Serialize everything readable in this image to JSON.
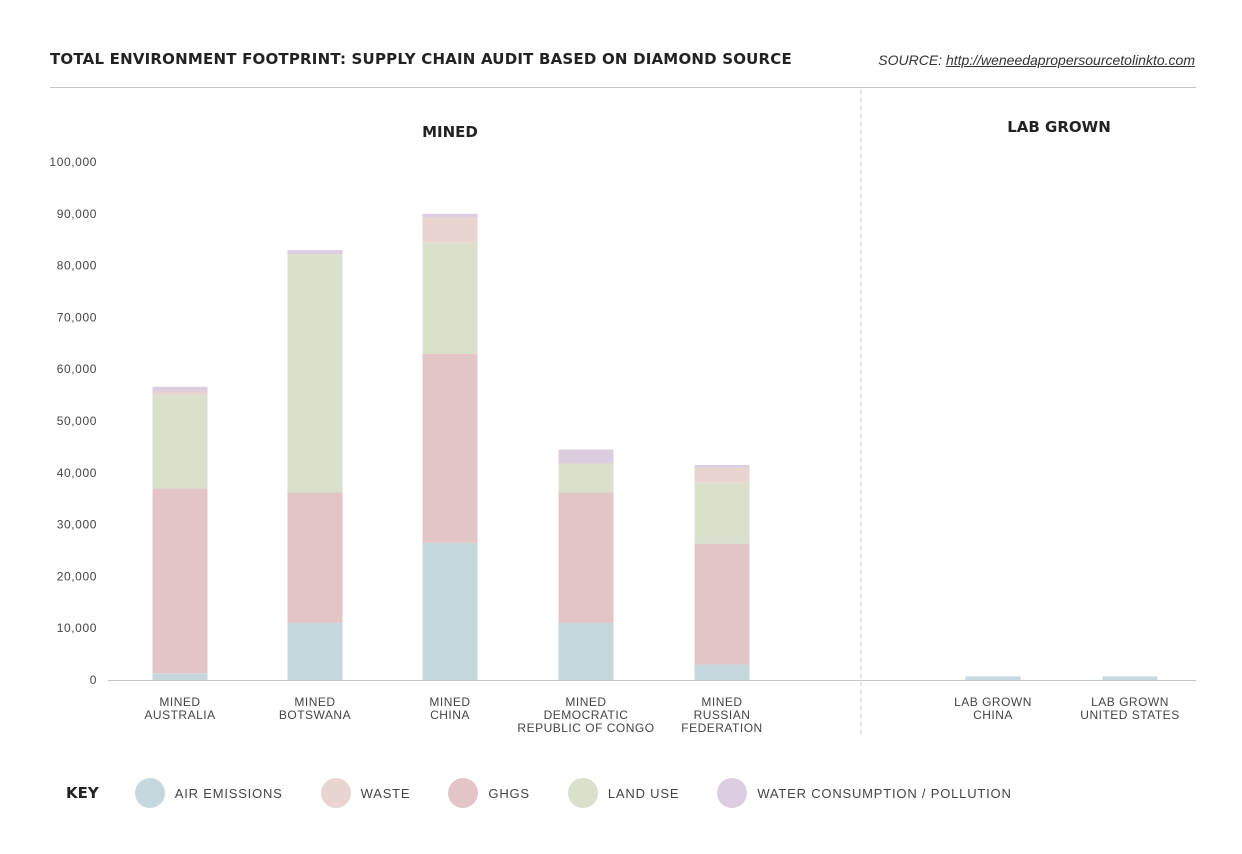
{
  "header": {
    "title": "TOTAL ENVIRONMENT FOOTPRINT: SUPPLY CHAIN AUDIT BASED ON DIAMOND SOURCE",
    "source_prefix": "SOURCE:",
    "source_link": "http://weneedapropersourcetolinkto.com"
  },
  "chart_data": {
    "type": "bar",
    "stacked": true,
    "groups": [
      {
        "label": "MINED",
        "categories": [
          0,
          1,
          2,
          3,
          4
        ]
      },
      {
        "label": "LAB GROWN",
        "categories": [
          5,
          6
        ]
      }
    ],
    "categories": [
      [
        "MINED",
        "AUSTRALIA"
      ],
      [
        "MINED",
        "BOTSWANA"
      ],
      [
        "MINED",
        "CHINA"
      ],
      [
        "MINED",
        "DEMOCRATIC",
        "REPUBLIC OF CONGO"
      ],
      [
        "MINED",
        "RUSSIAN",
        "FEDERATION"
      ],
      [
        "LAB GROWN",
        "CHINA"
      ],
      [
        "LAB GROWN",
        "UNITED STATES"
      ]
    ],
    "series": [
      {
        "name": "AIR EMISSIONS",
        "color": "#c5d8dd",
        "values": [
          1300,
          11000,
          26500,
          11000,
          3000,
          700,
          700
        ]
      },
      {
        "name": "GHGS",
        "color": "#e3c5c8",
        "values": [
          35700,
          25200,
          36500,
          25200,
          23300,
          0,
          0
        ]
      },
      {
        "name": "LAND USE",
        "color": "#dae0cc",
        "values": [
          18000,
          46000,
          21500,
          5600,
          11800,
          0,
          0
        ]
      },
      {
        "name": "WASTE",
        "color": "#e8d5cf",
        "values": [
          700,
          0,
          4800,
          0,
          2900,
          0,
          0
        ]
      },
      {
        "name": "WATER CONSUMPTION / POLLUTION",
        "color": "#dccde0",
        "values": [
          900,
          800,
          700,
          2700,
          500,
          0,
          0
        ]
      }
    ],
    "yticks": [
      "0",
      "10,000",
      "20,000",
      "30,000",
      "40,000",
      "50,000",
      "60,000",
      "70,000",
      "80,000",
      "90,000",
      "100,000"
    ],
    "ylim": [
      0,
      100000
    ],
    "grid": false
  },
  "key": {
    "title": "KEY",
    "items": [
      {
        "label": "AIR EMISSIONS",
        "color": "#c5d8dd"
      },
      {
        "label": "WASTE",
        "color": "#e8d5cf"
      },
      {
        "label": "GHGS",
        "color": "#e3c5c8"
      },
      {
        "label": "LAND USE",
        "color": "#dae0cc"
      },
      {
        "label": "WATER CONSUMPTION / POLLUTION",
        "color": "#dccde0"
      }
    ]
  }
}
